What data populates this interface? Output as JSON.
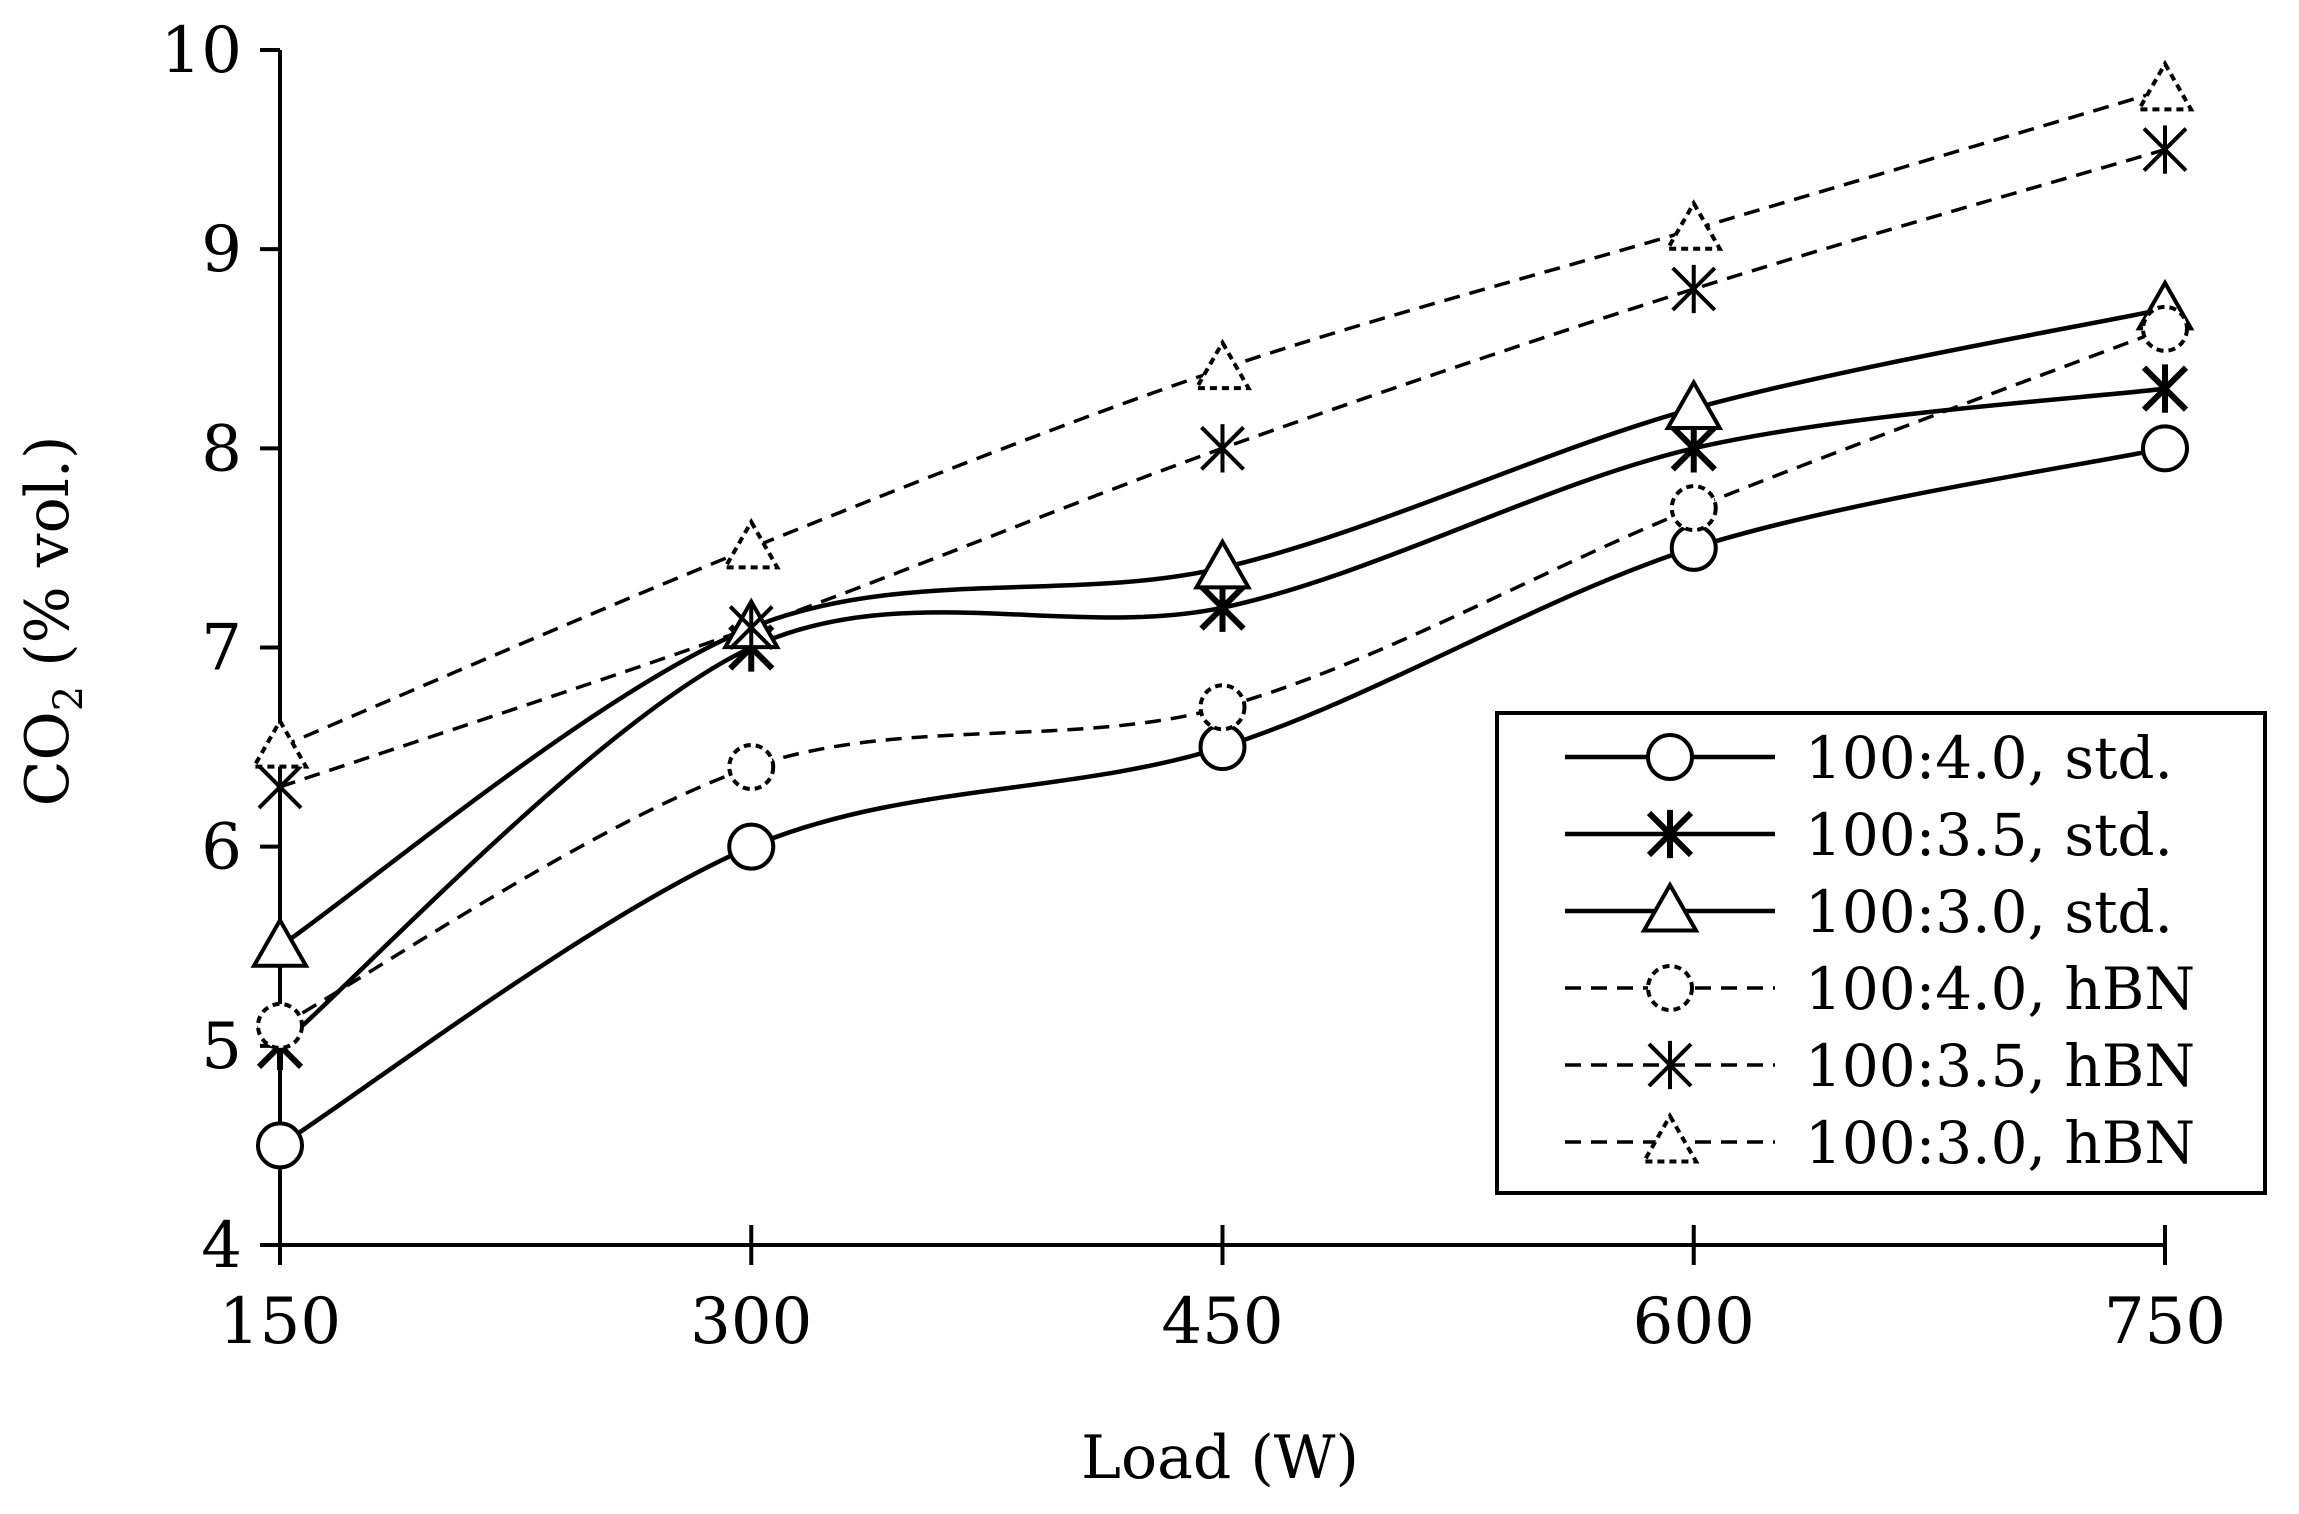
{
  "chart_data": {
    "type": "line",
    "title": "",
    "xlabel": "Load (W)",
    "ylabel_main": "CO",
    "ylabel_sub": "2",
    "ylabel_rest": " (% vol.)",
    "x": [
      150,
      300,
      450,
      600,
      750
    ],
    "x_tick_labels": [
      "150",
      "300",
      "450",
      "600",
      "750"
    ],
    "y_tick_labels": [
      "4",
      "5",
      "6",
      "7",
      "8",
      "9",
      "10"
    ],
    "ylim": [
      4,
      10
    ],
    "xlim": [
      150,
      750
    ],
    "grid": false,
    "legend_position": "bottom-right",
    "series": [
      {
        "name": "100:4.0, std.",
        "marker": "circle",
        "dash": "solid",
        "values": [
          4.5,
          6.0,
          6.5,
          7.5,
          8.0
        ]
      },
      {
        "name": "100:3.5, std.",
        "marker": "star",
        "dash": "solid",
        "values": [
          5.0,
          7.0,
          7.2,
          8.0,
          8.3
        ]
      },
      {
        "name": "100:3.0, std.",
        "marker": "triangle",
        "dash": "solid",
        "values": [
          5.5,
          7.1,
          7.4,
          8.2,
          8.7
        ]
      },
      {
        "name": "100:4.0, hBN",
        "marker": "circle",
        "dash": "dashed",
        "values": [
          5.1,
          6.4,
          6.7,
          7.7,
          8.6
        ]
      },
      {
        "name": "100:3.5, hBN",
        "marker": "star",
        "dash": "dashed",
        "values": [
          6.3,
          7.1,
          8.0,
          8.8,
          9.5
        ]
      },
      {
        "name": "100:3.0, hBN",
        "marker": "triangle",
        "dash": "dashed",
        "values": [
          6.5,
          7.5,
          8.4,
          9.1,
          9.8
        ]
      }
    ]
  }
}
